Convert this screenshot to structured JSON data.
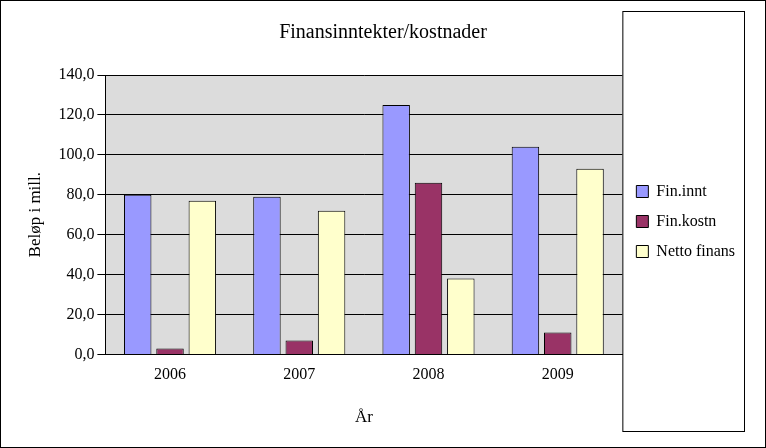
{
  "chart_data": {
    "type": "bar",
    "title": "Finansinntekter/kostnader",
    "x_label": "År",
    "y_label": "Beløp i mill.",
    "categories": [
      "2006",
      "2007",
      "2008",
      "2009"
    ],
    "series": [
      {
        "name": "Fin.innt",
        "color": "#9999ff",
        "values": [
          80,
          79,
          125,
          104
        ]
      },
      {
        "name": "Fin.kostn",
        "color": "#993366",
        "values": [
          3,
          7,
          86,
          11
        ]
      },
      {
        "name": "Netto finans",
        "color": "#ffffcc",
        "values": [
          77,
          72,
          38,
          93
        ]
      }
    ],
    "ylim": [
      0,
      140
    ],
    "yticks": [
      {
        "value": 0,
        "label": "0,0"
      },
      {
        "value": 20,
        "label": "20,0"
      },
      {
        "value": 40,
        "label": "40,0"
      },
      {
        "value": 60,
        "label": "60,0"
      },
      {
        "value": 80,
        "label": "80,0"
      },
      {
        "value": 100,
        "label": "100,0"
      },
      {
        "value": 120,
        "label": "120,0"
      },
      {
        "value": 140,
        "label": "140,0"
      }
    ],
    "grid": true,
    "legend": "right"
  }
}
